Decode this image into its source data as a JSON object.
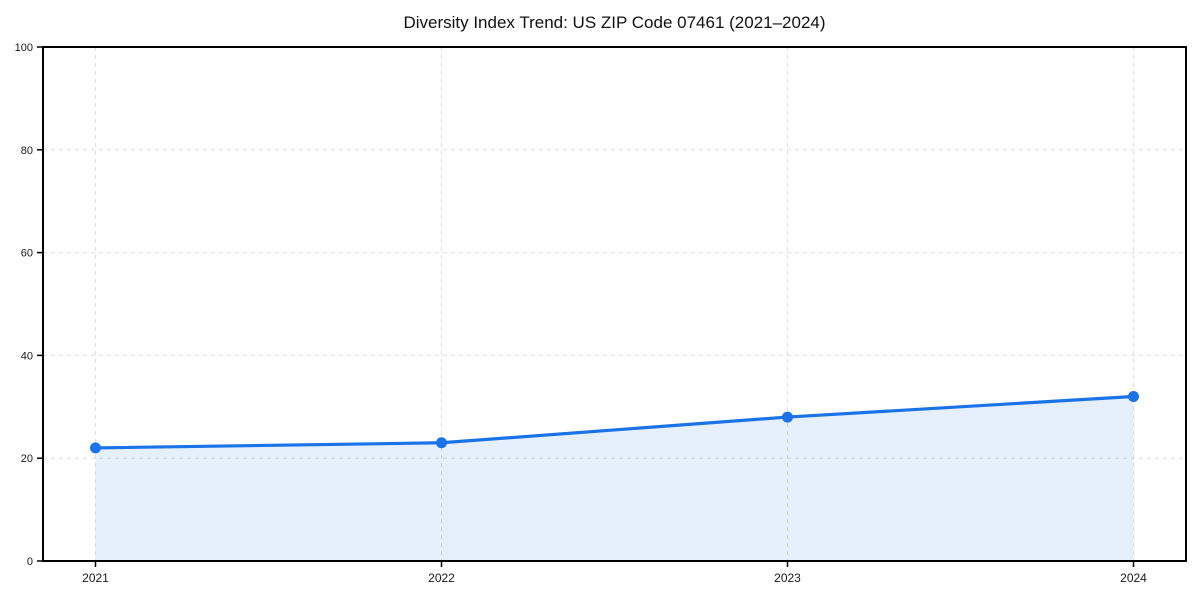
{
  "chart_data": {
    "type": "line",
    "title": "Diversity Index Trend: US ZIP Code 07461 (2021–2024)",
    "categories": [
      "2021",
      "2022",
      "2023",
      "2024"
    ],
    "series": [
      {
        "name": "Diversity Index",
        "values": [
          22,
          23,
          28,
          32
        ]
      }
    ],
    "xlabel": "",
    "ylabel": "",
    "ylim": [
      0,
      100
    ],
    "yticks": [
      0,
      20,
      40,
      60,
      80,
      100
    ],
    "grid": "dashed, horizontal and vertical",
    "legend": "none",
    "area_fill": "under line between first and last point",
    "colors": {
      "line": "#1a73e8",
      "marker": "#1a73e8",
      "fill": "#1a73e8",
      "fill_opacity": 0.11,
      "grid": "#dedede",
      "frame": "#000000",
      "tick_label": "#1a1a1a",
      "background": "#ffffff"
    }
  }
}
